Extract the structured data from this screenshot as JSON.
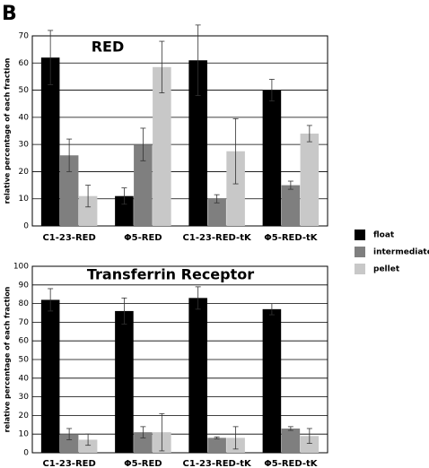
{
  "panel_label": "B",
  "chart_data": [
    {
      "type": "bar",
      "title": "RED",
      "y_label": "relative percentage of each fraction",
      "categories": [
        "C1-23-RED",
        "Φ5-RED",
        "C1-23-RED-tK",
        "Φ5-RED-tK"
      ],
      "series": [
        {
          "name": "float",
          "color": "#000000",
          "values": [
            62,
            11,
            61,
            50
          ],
          "errors": [
            10,
            3,
            13,
            4
          ]
        },
        {
          "name": "intermediate",
          "color": "#7f7f7f",
          "values": [
            26,
            30,
            10,
            15
          ],
          "errors": [
            6,
            6,
            1.5,
            1.5
          ]
        },
        {
          "name": "pellet",
          "color": "#c8c8c8",
          "values": [
            11,
            58.5,
            27.5,
            34
          ],
          "errors": [
            4,
            9.5,
            12,
            3
          ]
        }
      ],
      "ylim": [
        0,
        70
      ],
      "yticks": [
        0,
        10,
        20,
        30,
        40,
        50,
        60,
        70
      ],
      "grid": true,
      "legend": "right"
    },
    {
      "type": "bar",
      "title": "Transferrin Receptor",
      "y_label": "relative percentage of each fraction",
      "categories": [
        "C1-23-RED",
        "Φ5-RED",
        "C1-23-RED-tK",
        "Φ5-RED-tK"
      ],
      "series": [
        {
          "name": "float",
          "color": "#000000",
          "values": [
            82,
            76,
            83,
            77
          ],
          "errors": [
            6,
            7,
            6,
            3
          ]
        },
        {
          "name": "intermediate",
          "color": "#7f7f7f",
          "values": [
            10,
            11,
            8,
            13
          ],
          "errors": [
            3,
            3,
            0.5,
            1
          ]
        },
        {
          "name": "pellet",
          "color": "#c8c8c8",
          "values": [
            7,
            11,
            8,
            9
          ],
          "errors": [
            3,
            10,
            6,
            4
          ]
        }
      ],
      "ylim": [
        0,
        100
      ],
      "yticks": [
        0,
        10,
        20,
        30,
        40,
        50,
        60,
        70,
        80,
        90,
        100
      ],
      "grid": true
    }
  ]
}
